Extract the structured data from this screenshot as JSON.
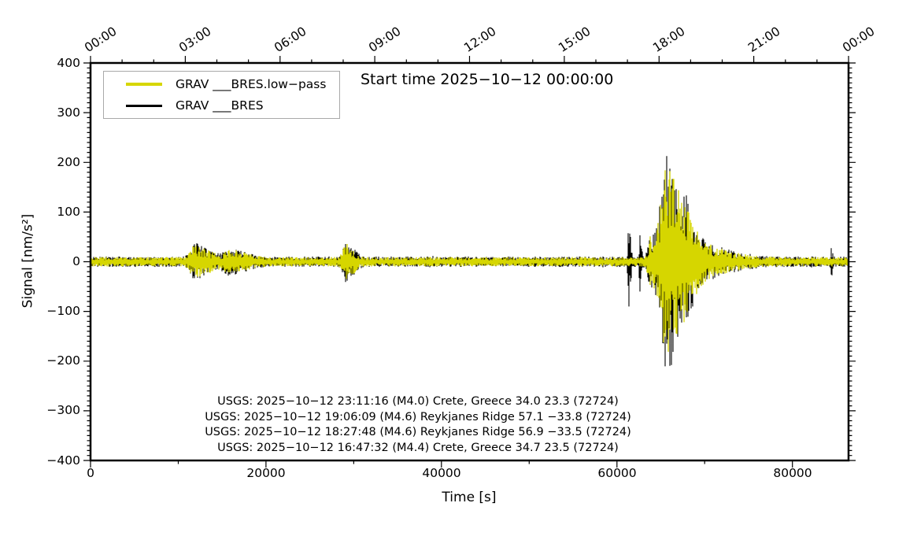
{
  "axes": {
    "top": {
      "ticks": [
        "00:00",
        "03:00",
        "06:00",
        "09:00",
        "12:00",
        "15:00",
        "18:00",
        "21:00",
        "00:00"
      ]
    },
    "left": {
      "ticks": [
        "400",
        "300",
        "200",
        "100",
        "0",
        "−100",
        "−200",
        "−300",
        "−400"
      ]
    },
    "bottom": {
      "ticks": [
        "0",
        "20000",
        "40000",
        "60000",
        "80000"
      ]
    }
  },
  "chart_data": {
    "type": "line",
    "title": "Start time 2025−10−12 00:00:00",
    "xlabel": "Time [s]",
    "ylabel": "Signal [nm/s²]",
    "xlim": [
      0,
      86400
    ],
    "ylim": [
      -400,
      400
    ],
    "x_major_tick_step_s": 20000,
    "x_minor_tick_step_s": 10000,
    "y_major_tick_step": 100,
    "y_minor_tick_step": 10,
    "top_axis": {
      "unit": "time of day",
      "major_step_s": 10800,
      "minor_step_s": 3600
    },
    "grid": false,
    "legend_position": "top-left",
    "frame_color": "#000000",
    "series": [
      {
        "name": "GRAV ___BRES.low−pass",
        "color": "#d6d600",
        "role": "low-pass filtered seismogram"
      },
      {
        "name": "GRAV ___BRES",
        "color": "#000000",
        "role": "raw seismogram"
      }
    ],
    "baseline_noise_amplitude": 10,
    "events": [
      {
        "time_s": 11900,
        "peak_amplitude": 26,
        "duration_s": 2200
      },
      {
        "time_s": 15800,
        "peak_amplitude": 16,
        "duration_s": 2500
      },
      {
        "time_s": 29000,
        "peak_amplitude": 32,
        "duration_s": 1200
      },
      {
        "time_s": 61300,
        "peak_amplitude": 80,
        "duration_s": 300,
        "black_only": true
      },
      {
        "time_s": 62600,
        "peak_amplitude": 55,
        "duration_s": 250,
        "black_only": true
      },
      {
        "time_s": 63800,
        "peak_amplitude": 45,
        "duration_s": 1200
      },
      {
        "time_s": 65600,
        "peak_amplitude": 195,
        "duration_s": 2600
      },
      {
        "time_s": 68500,
        "peak_amplitude": 28,
        "duration_s": 5000
      },
      {
        "time_s": 84400,
        "peak_amplitude": 24,
        "duration_s": 200,
        "black_only": true
      }
    ],
    "annotations": [
      "USGS: 2025−10−12 23:11:16 (M4.0) Crete, Greece 34.0 23.3 (72724)",
      "USGS: 2025−10−12 19:06:09 (M4.6) Reykjanes Ridge 57.1 −33.8 (72724)",
      "USGS: 2025−10−12 18:27:48 (M4.6) Reykjanes Ridge 56.9 −33.5 (72724)",
      "USGS: 2025−10−12 16:47:32 (M4.4) Crete, Greece 34.7 23.5 (72724)"
    ]
  }
}
